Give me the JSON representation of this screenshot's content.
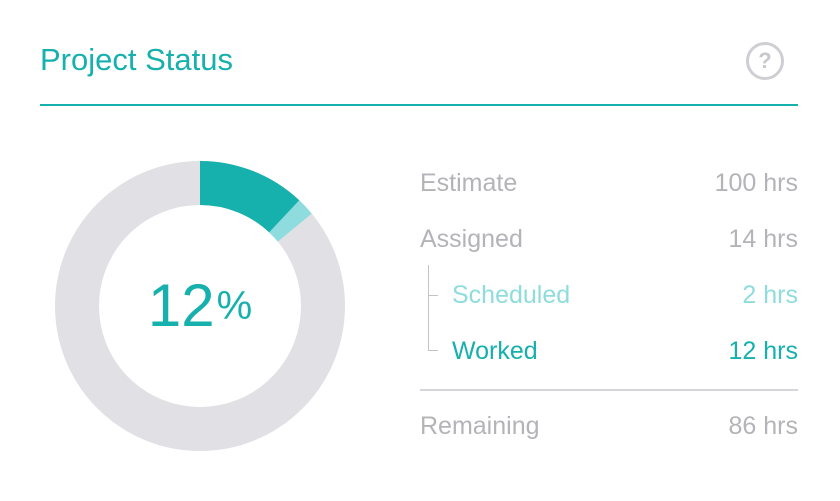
{
  "header": {
    "title": "Project Status",
    "help_icon": "question-mark-circle-icon",
    "help_label": "?"
  },
  "progress": {
    "percent_value": "12",
    "percent_symbol": "%",
    "worked_fraction": 0.12,
    "scheduled_fraction": 0.02,
    "remaining_fraction": 0.86
  },
  "stats": {
    "estimate": {
      "label": "Estimate",
      "value": "100 hrs"
    },
    "assigned": {
      "label": "Assigned",
      "value": "14 hrs"
    },
    "scheduled": {
      "label": "Scheduled",
      "value": "2 hrs"
    },
    "worked": {
      "label": "Worked",
      "value": "12 hrs"
    },
    "remaining": {
      "label": "Remaining",
      "value": "86 hrs"
    }
  },
  "colors": {
    "accent": "#16b0ad",
    "scheduled": "#8fdcde",
    "track": "#e1e1e5",
    "muted_text": "#b4b4b8"
  }
}
